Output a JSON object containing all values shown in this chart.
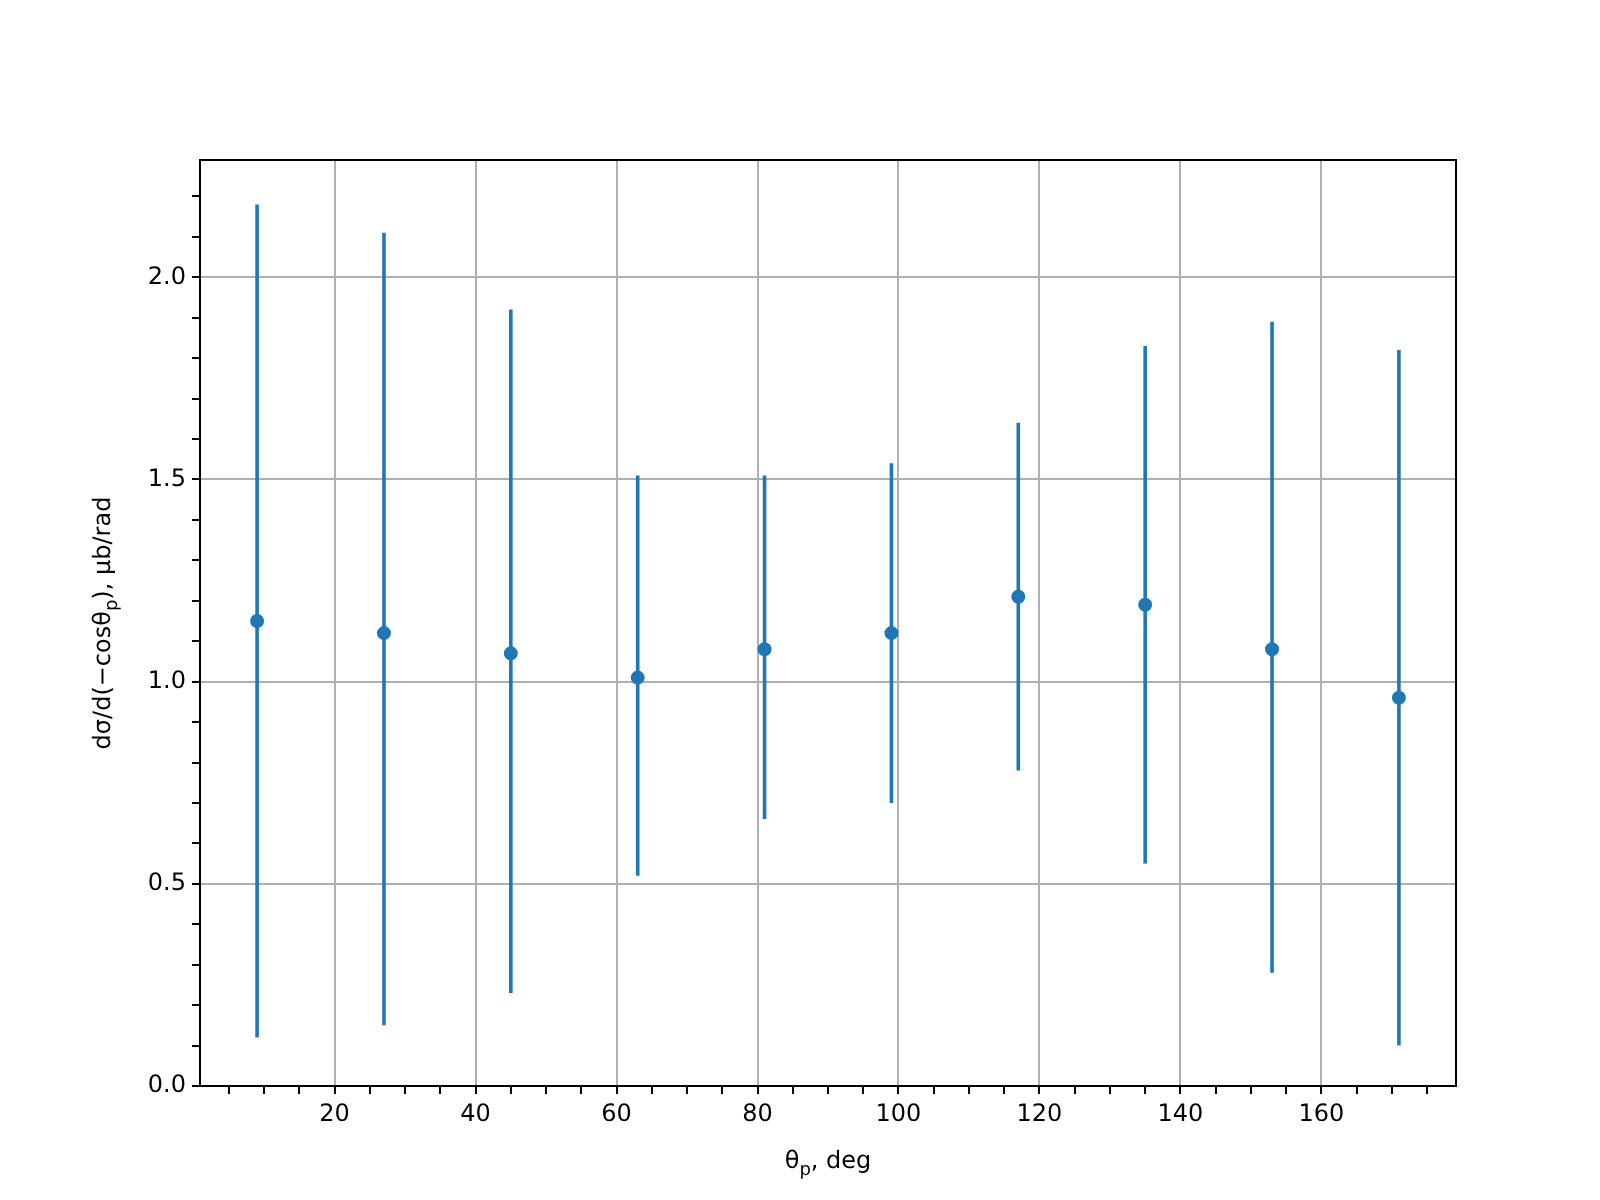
{
  "chart_data": {
    "type": "scatter",
    "xlabel": "θ$_{p}$, deg",
    "ylabel": "dσ/d(−cosθ$_{p}$), μb/rad",
    "x": [
      9,
      27,
      45,
      63,
      81,
      99,
      117,
      135,
      153,
      171
    ],
    "series": [
      {
        "color": "#1f77b4",
        "values": [
          1.15,
          1.12,
          1.07,
          1.01,
          1.08,
          1.12,
          1.21,
          1.19,
          1.08,
          0.96
        ],
        "errors": [
          [
            0.12,
            2.18
          ],
          [
            0.15,
            2.11
          ],
          [
            0.23,
            1.92
          ],
          [
            0.52,
            1.51
          ],
          [
            0.66,
            1.51
          ],
          [
            0.7,
            1.54
          ],
          [
            0.78,
            1.64
          ],
          [
            0.55,
            1.83
          ],
          [
            0.28,
            1.89
          ],
          [
            0.1,
            1.82
          ]
        ]
      }
    ],
    "marker": "circle",
    "grid": true,
    "legend": false,
    "xlim": [
      0.9,
      179.1
    ],
    "xticks": [
      {
        "value": 5,
        "label": null
      },
      {
        "value": 10,
        "label": null
      },
      {
        "value": 15,
        "label": null
      },
      20,
      {
        "value": 25,
        "label": null
      },
      {
        "value": 30,
        "label": null
      },
      {
        "value": 35,
        "label": null
      },
      40,
      {
        "value": 45,
        "label": null
      },
      {
        "value": 50,
        "label": null
      },
      {
        "value": 55,
        "label": null
      },
      60,
      {
        "value": 65,
        "label": null
      },
      {
        "value": 70,
        "label": null
      },
      {
        "value": 75,
        "label": null
      },
      80,
      {
        "value": 85,
        "label": null
      },
      {
        "value": 90,
        "label": null
      },
      {
        "value": 95,
        "label": null
      },
      100,
      {
        "value": 105,
        "label": null
      },
      {
        "value": 110,
        "label": null
      },
      {
        "value": 115,
        "label": null
      },
      120,
      {
        "value": 125,
        "label": null
      },
      {
        "value": 130,
        "label": null
      },
      {
        "value": 135,
        "label": null
      },
      140,
      {
        "value": 145,
        "label": null
      },
      {
        "value": 150,
        "label": null
      },
      {
        "value": 155,
        "label": null
      },
      160,
      {
        "value": 165,
        "label": null
      },
      {
        "value": 170,
        "label": null
      },
      {
        "value": 175,
        "label": null
      }
    ],
    "ylim": [
      0,
      2.29
    ],
    "yticks": [
      {
        "value": 0,
        "label": "0.0"
      },
      {
        "value": 0.1,
        "label": null
      },
      {
        "value": 0.2,
        "label": null
      },
      {
        "value": 0.3,
        "label": null
      },
      {
        "value": 0.4,
        "label": null
      },
      {
        "value": 0.5,
        "label": "0.5"
      },
      {
        "value": 0.6,
        "label": null
      },
      {
        "value": 0.7,
        "label": null
      },
      {
        "value": 0.8,
        "label": null
      },
      {
        "value": 0.9,
        "label": null
      },
      {
        "value": 1,
        "label": "1.0"
      },
      {
        "value": 1.1,
        "label": null
      },
      {
        "value": 1.2,
        "label": null
      },
      {
        "value": 1.3,
        "label": null
      },
      {
        "value": 1.4,
        "label": null
      },
      {
        "value": 1.5,
        "label": "1.5"
      },
      {
        "value": 1.6,
        "label": null
      },
      {
        "value": 1.7,
        "label": null
      },
      {
        "value": 1.8,
        "label": null
      },
      {
        "value": 1.9,
        "label": null
      },
      {
        "value": 2,
        "label": "2.0"
      },
      {
        "value": 2.1,
        "label": null
      },
      {
        "value": 2.2,
        "label": null
      }
    ]
  }
}
